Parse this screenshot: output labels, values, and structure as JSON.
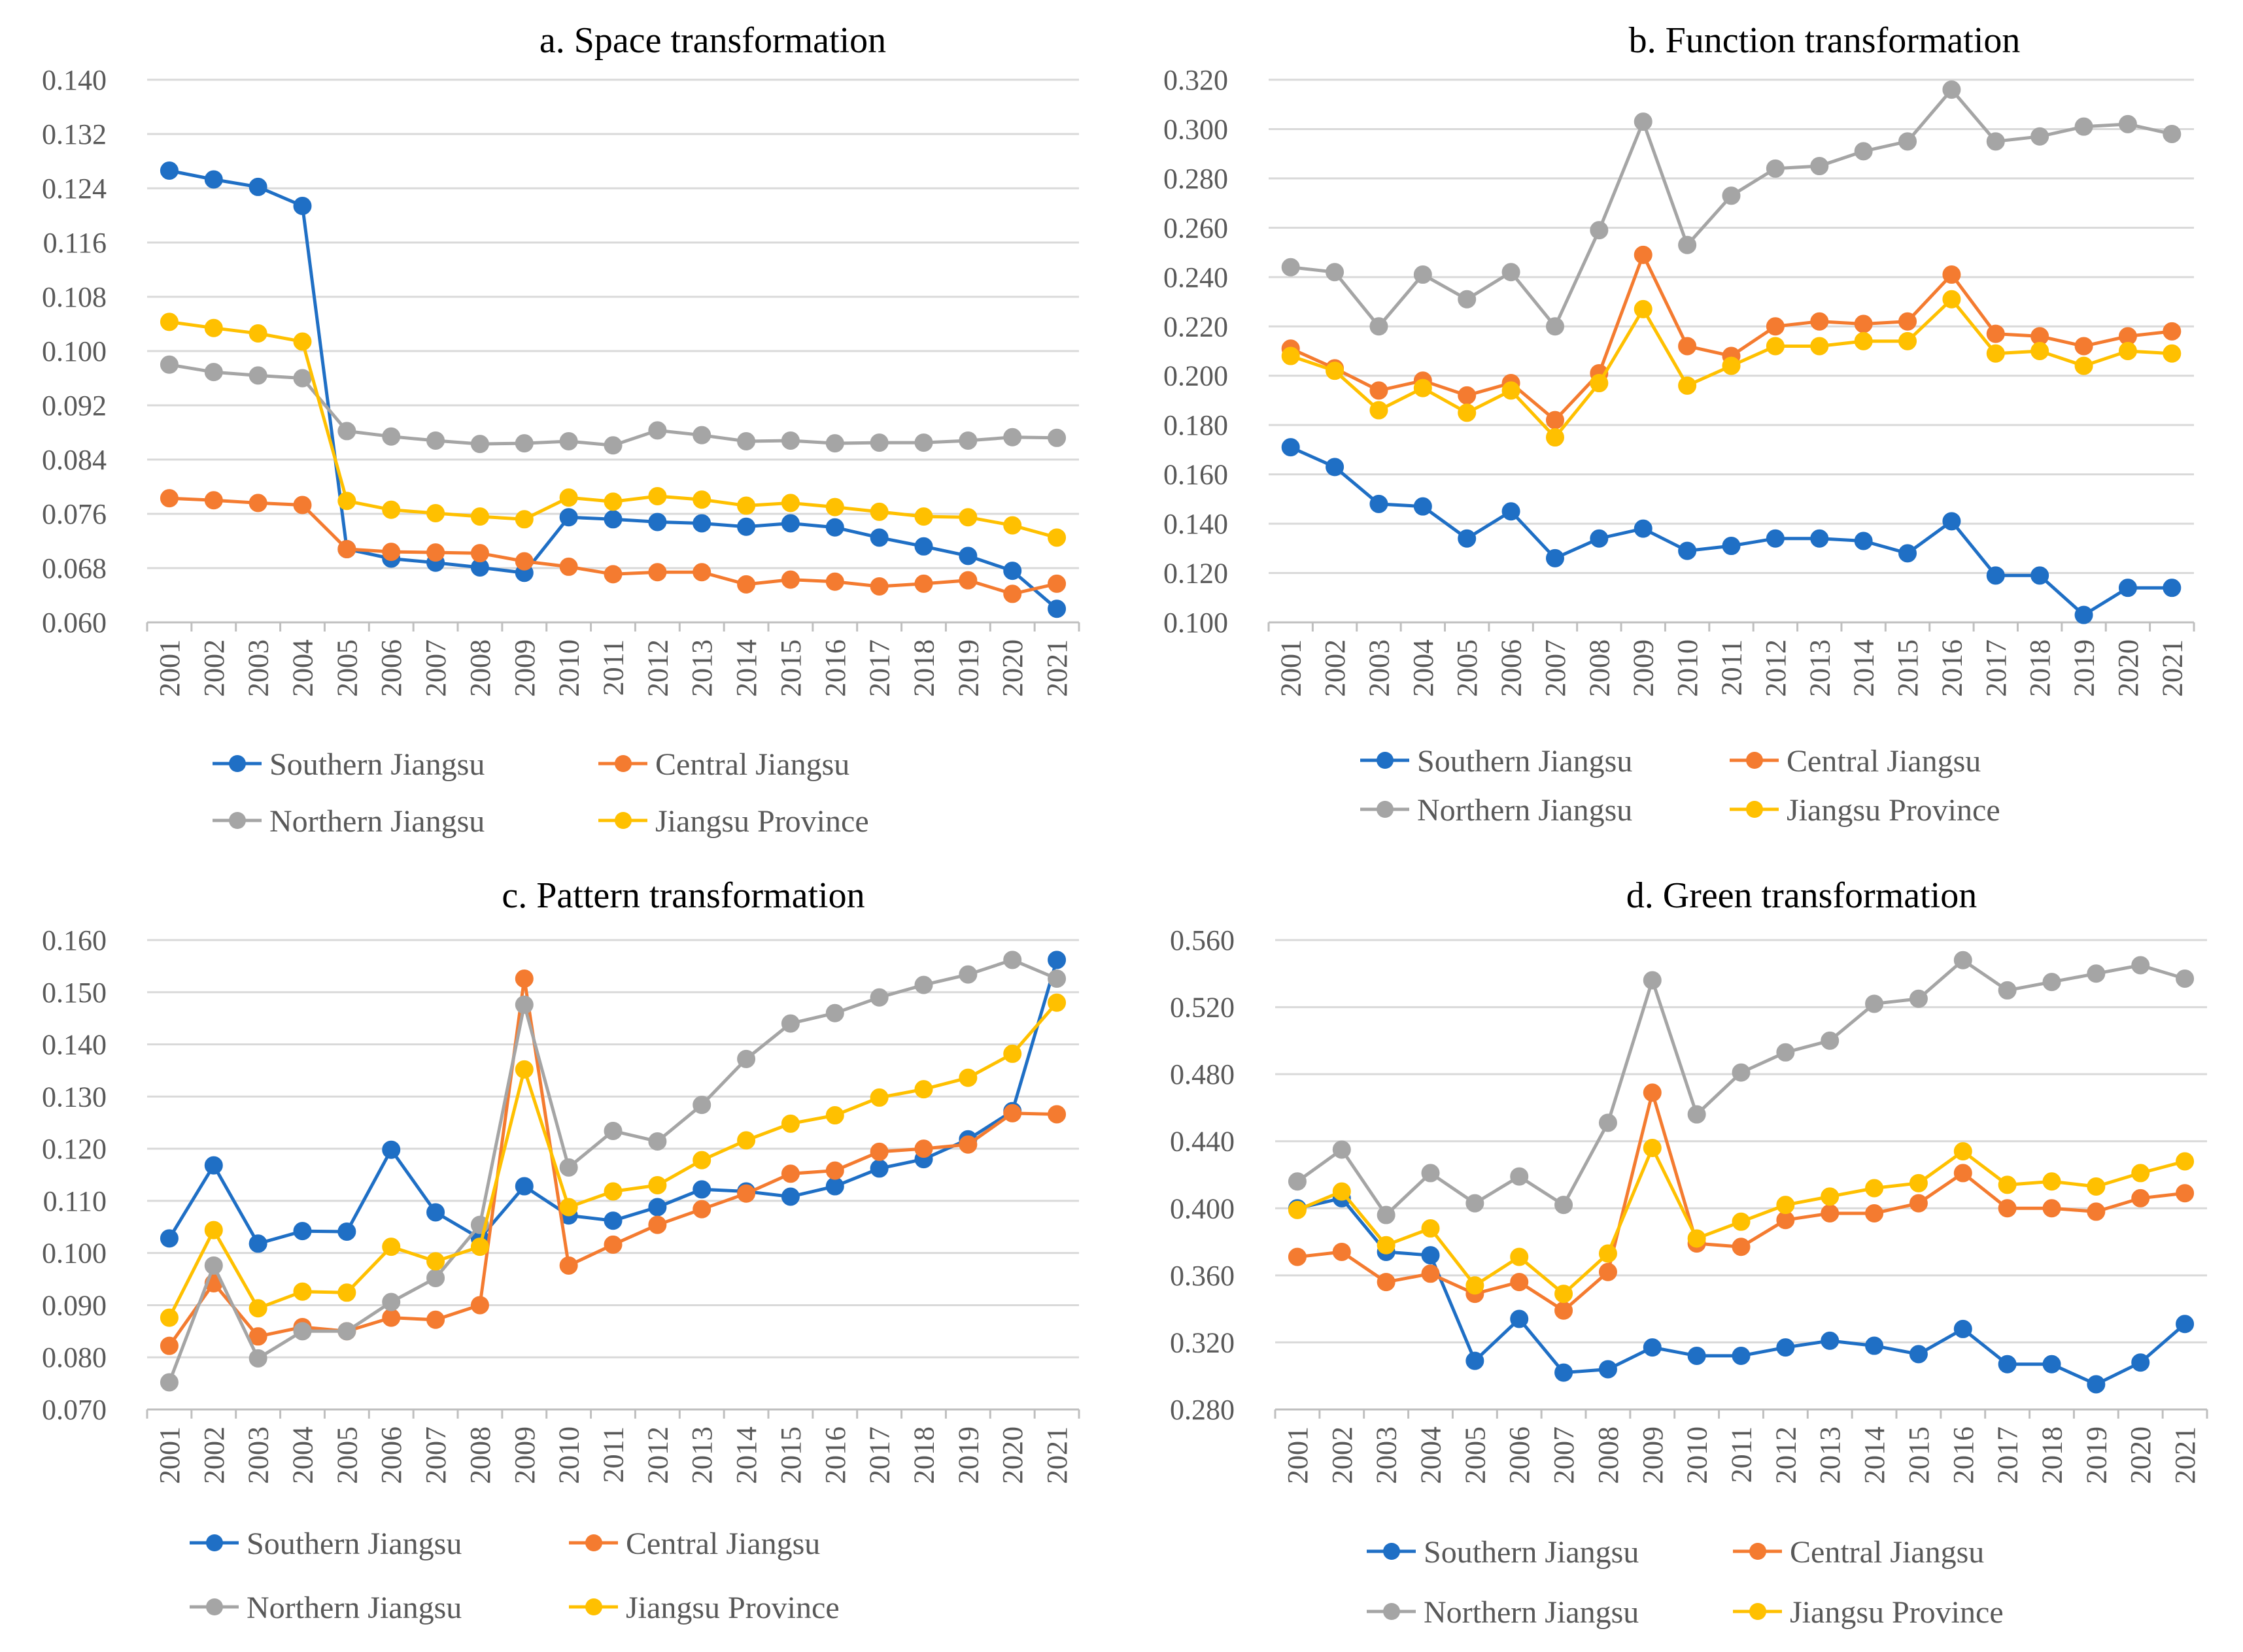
{
  "colors": {
    "Southern Jiangsu": "#1f6fc5",
    "Central Jiangsu": "#f47b30",
    "Northern Jiangsu": "#a5a5a5",
    "Jiangsu Province": "#ffc000"
  },
  "chart_data": [
    {
      "id": "a",
      "type": "line",
      "title": "a. Space transformation",
      "categories": [
        "2001",
        "2002",
        "2003",
        "2004",
        "2005",
        "2006",
        "2007",
        "2008",
        "2009",
        "2010",
        "2011",
        "2012",
        "2013",
        "2014",
        "2015",
        "2016",
        "2017",
        "2018",
        "2019",
        "2020",
        "2021"
      ],
      "ylim": [
        0.06,
        0.14
      ],
      "yticks": [
        "0.060",
        "0.068",
        "0.076",
        "0.084",
        "0.092",
        "0.100",
        "0.108",
        "0.116",
        "0.124",
        "0.132",
        "0.140"
      ],
      "legend": [
        "Southern Jiangsu",
        "Central Jiangsu",
        "Northern Jiangsu",
        "Jiangsu Province"
      ],
      "series": [
        {
          "name": "Southern Jiangsu",
          "values": [
            0.1266,
            0.1253,
            0.1242,
            0.1214,
            0.0708,
            0.0694,
            0.0688,
            0.0681,
            0.0673,
            0.0755,
            0.0752,
            0.0748,
            0.0746,
            0.0741,
            0.0746,
            0.074,
            0.0725,
            0.0712,
            0.0698,
            0.0676,
            0.062
          ]
        },
        {
          "name": "Central Jiangsu",
          "values": [
            0.0783,
            0.078,
            0.0776,
            0.0773,
            0.0708,
            0.0704,
            0.0703,
            0.0702,
            0.069,
            0.0682,
            0.0671,
            0.0674,
            0.0674,
            0.0656,
            0.0663,
            0.066,
            0.0653,
            0.0657,
            0.0662,
            0.0642,
            0.0657
          ]
        },
        {
          "name": "Northern Jiangsu",
          "values": [
            0.098,
            0.0969,
            0.0964,
            0.096,
            0.0882,
            0.0874,
            0.0868,
            0.0863,
            0.0864,
            0.0867,
            0.0861,
            0.0883,
            0.0876,
            0.0867,
            0.0868,
            0.0864,
            0.0865,
            0.0865,
            0.0868,
            0.0873,
            0.0872
          ]
        },
        {
          "name": "Jiangsu Province",
          "values": [
            0.1043,
            0.1034,
            0.1026,
            0.1014,
            0.0779,
            0.0766,
            0.0761,
            0.0756,
            0.0752,
            0.0784,
            0.0778,
            0.0786,
            0.0781,
            0.0772,
            0.0776,
            0.077,
            0.0763,
            0.0756,
            0.0755,
            0.0743,
            0.0725
          ]
        }
      ]
    },
    {
      "id": "b",
      "type": "line",
      "title": "b. Function  transformation",
      "categories": [
        "2001",
        "2002",
        "2003",
        "2004",
        "2005",
        "2006",
        "2007",
        "2008",
        "2009",
        "2010",
        "2011",
        "2012",
        "2013",
        "2014",
        "2015",
        "2016",
        "2017",
        "2018",
        "2019",
        "2020",
        "2021"
      ],
      "ylim": [
        0.1,
        0.32
      ],
      "yticks": [
        "0.100",
        "0.120",
        "0.140",
        "0.160",
        "0.180",
        "0.200",
        "0.220",
        "0.240",
        "0.260",
        "0.280",
        "0.300",
        "0.320"
      ],
      "legend": [
        "Southern Jiangsu",
        "Central Jiangsu",
        "Northern Jiangsu",
        "Jiangsu Province"
      ],
      "series": [
        {
          "name": "Southern Jiangsu",
          "values": [
            0.171,
            0.163,
            0.148,
            0.147,
            0.134,
            0.145,
            0.126,
            0.134,
            0.138,
            0.129,
            0.131,
            0.134,
            0.134,
            0.133,
            0.128,
            0.141,
            0.119,
            0.119,
            0.103,
            0.114,
            0.114
          ]
        },
        {
          "name": "Central Jiangsu",
          "values": [
            0.211,
            0.203,
            0.194,
            0.198,
            0.192,
            0.197,
            0.182,
            0.201,
            0.249,
            0.212,
            0.208,
            0.22,
            0.222,
            0.221,
            0.222,
            0.241,
            0.217,
            0.216,
            0.212,
            0.216,
            0.218
          ]
        },
        {
          "name": "Northern Jiangsu",
          "values": [
            0.244,
            0.242,
            0.22,
            0.241,
            0.231,
            0.242,
            0.22,
            0.259,
            0.303,
            0.253,
            0.273,
            0.284,
            0.285,
            0.291,
            0.295,
            0.316,
            0.295,
            0.297,
            0.301,
            0.302,
            0.298
          ]
        },
        {
          "name": "Jiangsu Province",
          "values": [
            0.208,
            0.202,
            0.186,
            0.195,
            0.185,
            0.194,
            0.175,
            0.197,
            0.227,
            0.196,
            0.204,
            0.212,
            0.212,
            0.214,
            0.214,
            0.231,
            0.209,
            0.21,
            0.204,
            0.21,
            0.209
          ]
        }
      ]
    },
    {
      "id": "c",
      "type": "line",
      "title": "c. Pattern transformation",
      "categories": [
        "2001",
        "2002",
        "2003",
        "2004",
        "2005",
        "2006",
        "2007",
        "2008",
        "2009",
        "2010",
        "2011",
        "2012",
        "2013",
        "2014",
        "2015",
        "2016",
        "2017",
        "2018",
        "2019",
        "2020",
        "2021"
      ],
      "ylim": [
        0.07,
        0.16
      ],
      "yticks": [
        "0.070",
        "0.080",
        "0.090",
        "0.100",
        "0.110",
        "0.120",
        "0.130",
        "0.140",
        "0.150",
        "0.160"
      ],
      "legend": [
        "Southern Jiangsu",
        "Central Jiangsu",
        "Northern Jiangsu",
        "Jiangsu Province"
      ],
      "series": [
        {
          "name": "Southern Jiangsu",
          "values": [
            0.1028,
            0.1168,
            0.1018,
            0.1042,
            0.1041,
            0.1198,
            0.1078,
            0.1028,
            0.1128,
            0.1072,
            0.1062,
            0.1088,
            0.1122,
            0.1118,
            0.1108,
            0.1128,
            0.1162,
            0.118,
            0.1218,
            0.1272,
            0.1562
          ]
        },
        {
          "name": "Central Jiangsu",
          "values": [
            0.0822,
            0.0942,
            0.084,
            0.0858,
            0.085,
            0.0876,
            0.0872,
            0.09,
            0.1526,
            0.0976,
            0.1016,
            0.1054,
            0.1084,
            0.1114,
            0.1152,
            0.1158,
            0.1194,
            0.12,
            0.1208,
            0.1268,
            0.1266
          ]
        },
        {
          "name": "Northern Jiangsu",
          "values": [
            0.0752,
            0.0976,
            0.0798,
            0.085,
            0.085,
            0.0906,
            0.0952,
            0.1054,
            0.1476,
            0.1164,
            0.1234,
            0.1214,
            0.1284,
            0.1372,
            0.144,
            0.146,
            0.149,
            0.1514,
            0.1534,
            0.1562,
            0.1526
          ]
        },
        {
          "name": "Jiangsu Province",
          "values": [
            0.0876,
            0.1044,
            0.0894,
            0.0926,
            0.0924,
            0.1012,
            0.0984,
            0.1012,
            0.1352,
            0.1088,
            0.1118,
            0.113,
            0.1178,
            0.1216,
            0.1248,
            0.1264,
            0.1298,
            0.1314,
            0.1336,
            0.1382,
            0.148
          ]
        }
      ]
    },
    {
      "id": "d",
      "type": "line",
      "title": "d. Green transformation",
      "categories": [
        "2001",
        "2002",
        "2003",
        "2004",
        "2005",
        "2006",
        "2007",
        "2008",
        "2009",
        "2010",
        "2011",
        "2012",
        "2013",
        "2014",
        "2015",
        "2016",
        "2017",
        "2018",
        "2019",
        "2020",
        "2021"
      ],
      "ylim": [
        0.28,
        0.56
      ],
      "yticks": [
        "0.280",
        "0.320",
        "0.360",
        "0.400",
        "0.440",
        "0.480",
        "0.520",
        "0.560"
      ],
      "legend": [
        "Southern Jiangsu",
        "Central Jiangsu",
        "Northern Jiangsu",
        "Jiangsu Province"
      ],
      "series": [
        {
          "name": "Southern Jiangsu",
          "values": [
            0.4,
            0.406,
            0.374,
            0.372,
            0.309,
            0.334,
            0.302,
            0.304,
            0.317,
            0.312,
            0.312,
            0.317,
            0.321,
            0.318,
            0.313,
            0.328,
            0.307,
            0.307,
            0.295,
            0.308,
            0.331
          ]
        },
        {
          "name": "Central Jiangsu",
          "values": [
            0.371,
            0.374,
            0.356,
            0.361,
            0.349,
            0.356,
            0.339,
            0.362,
            0.469,
            0.379,
            0.377,
            0.393,
            0.397,
            0.397,
            0.403,
            0.421,
            0.4,
            0.4,
            0.398,
            0.406,
            0.409
          ]
        },
        {
          "name": "Northern Jiangsu",
          "values": [
            0.416,
            0.435,
            0.396,
            0.421,
            0.403,
            0.419,
            0.402,
            0.451,
            0.536,
            0.456,
            0.481,
            0.493,
            0.5,
            0.522,
            0.525,
            0.548,
            0.53,
            0.535,
            0.54,
            0.545,
            0.537
          ]
        },
        {
          "name": "Jiangsu Province",
          "values": [
            0.399,
            0.41,
            0.378,
            0.388,
            0.354,
            0.371,
            0.349,
            0.373,
            0.436,
            0.382,
            0.392,
            0.402,
            0.407,
            0.412,
            0.415,
            0.434,
            0.414,
            0.416,
            0.413,
            0.421,
            0.428
          ]
        }
      ]
    }
  ]
}
